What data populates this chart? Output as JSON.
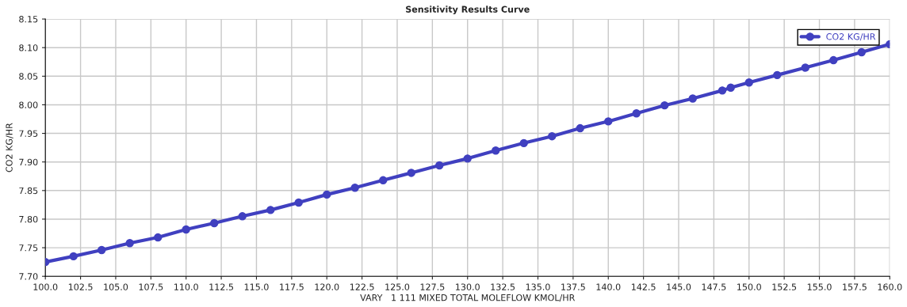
{
  "chart_data": {
    "type": "line",
    "title": "Sensitivity Results Curve",
    "xlabel": "VARY   1 111 MIXED TOTAL MOLEFLOW KMOL/HR",
    "ylabel": "CO2 KG/HR",
    "x": [
      100,
      102,
      104,
      106,
      108,
      110,
      112,
      114,
      116,
      118,
      120,
      122,
      124,
      126,
      128,
      130,
      132,
      134,
      136,
      138,
      140,
      142,
      144,
      146,
      148.1,
      148.7,
      150,
      152,
      154,
      156,
      158,
      160
    ],
    "series": [
      {
        "name": "CO2 KG/HR",
        "color": "#4040c0",
        "values": [
          7.725,
          7.735,
          7.746,
          7.758,
          7.768,
          7.782,
          7.793,
          7.805,
          7.816,
          7.829,
          7.843,
          7.855,
          7.868,
          7.881,
          7.894,
          7.906,
          7.92,
          7.933,
          7.945,
          7.959,
          7.971,
          7.985,
          7.999,
          8.011,
          8.025,
          8.03,
          8.039,
          8.052,
          8.065,
          8.078,
          8.092,
          8.106
        ]
      }
    ],
    "xlim": [
      100,
      160
    ],
    "xticks": [
      {
        "value": 100,
        "label": "100.0"
      },
      {
        "value": 102.5,
        "label": "102.5"
      },
      {
        "value": 105,
        "label": "105.0"
      },
      {
        "value": 107.5,
        "label": "107.5"
      },
      {
        "value": 110,
        "label": "110.0"
      },
      {
        "value": 112.5,
        "label": "112.5"
      },
      {
        "value": 115,
        "label": "115.0"
      },
      {
        "value": 117.5,
        "label": "117.5"
      },
      {
        "value": 120,
        "label": "120.0"
      },
      {
        "value": 122.5,
        "label": "122.5"
      },
      {
        "value": 125,
        "label": "125.0"
      },
      {
        "value": 127.5,
        "label": "127.5"
      },
      {
        "value": 130,
        "label": "130.0"
      },
      {
        "value": 132.5,
        "label": "132.5"
      },
      {
        "value": 135,
        "label": "135.0"
      },
      {
        "value": 137.5,
        "label": "137.5"
      },
      {
        "value": 140,
        "label": "140.0"
      },
      {
        "value": 142.5,
        "label": "142.5"
      },
      {
        "value": 145,
        "label": "145.0"
      },
      {
        "value": 147.5,
        "label": "147.5"
      },
      {
        "value": 150,
        "label": "150.0"
      },
      {
        "value": 152.5,
        "label": "152.5"
      },
      {
        "value": 155,
        "label": "155.0"
      },
      {
        "value": 157.5,
        "label": "157.5"
      },
      {
        "value": 160,
        "label": "160.0"
      }
    ],
    "ylim": [
      7.7,
      8.15
    ],
    "yticks": [
      {
        "value": 7.7,
        "label": "7.70"
      },
      {
        "value": 7.75,
        "label": "7.75"
      },
      {
        "value": 7.8,
        "label": "7.80"
      },
      {
        "value": 7.85,
        "label": "7.85"
      },
      {
        "value": 7.9,
        "label": "7.90"
      },
      {
        "value": 7.95,
        "label": "7.95"
      },
      {
        "value": 8.0,
        "label": "8.00"
      },
      {
        "value": 8.05,
        "label": "8.05"
      },
      {
        "value": 8.1,
        "label": "8.10"
      },
      {
        "value": 8.15,
        "label": "8.15"
      }
    ],
    "grid": true,
    "legend": "top right",
    "marker": "circle",
    "line_style": "solid"
  }
}
